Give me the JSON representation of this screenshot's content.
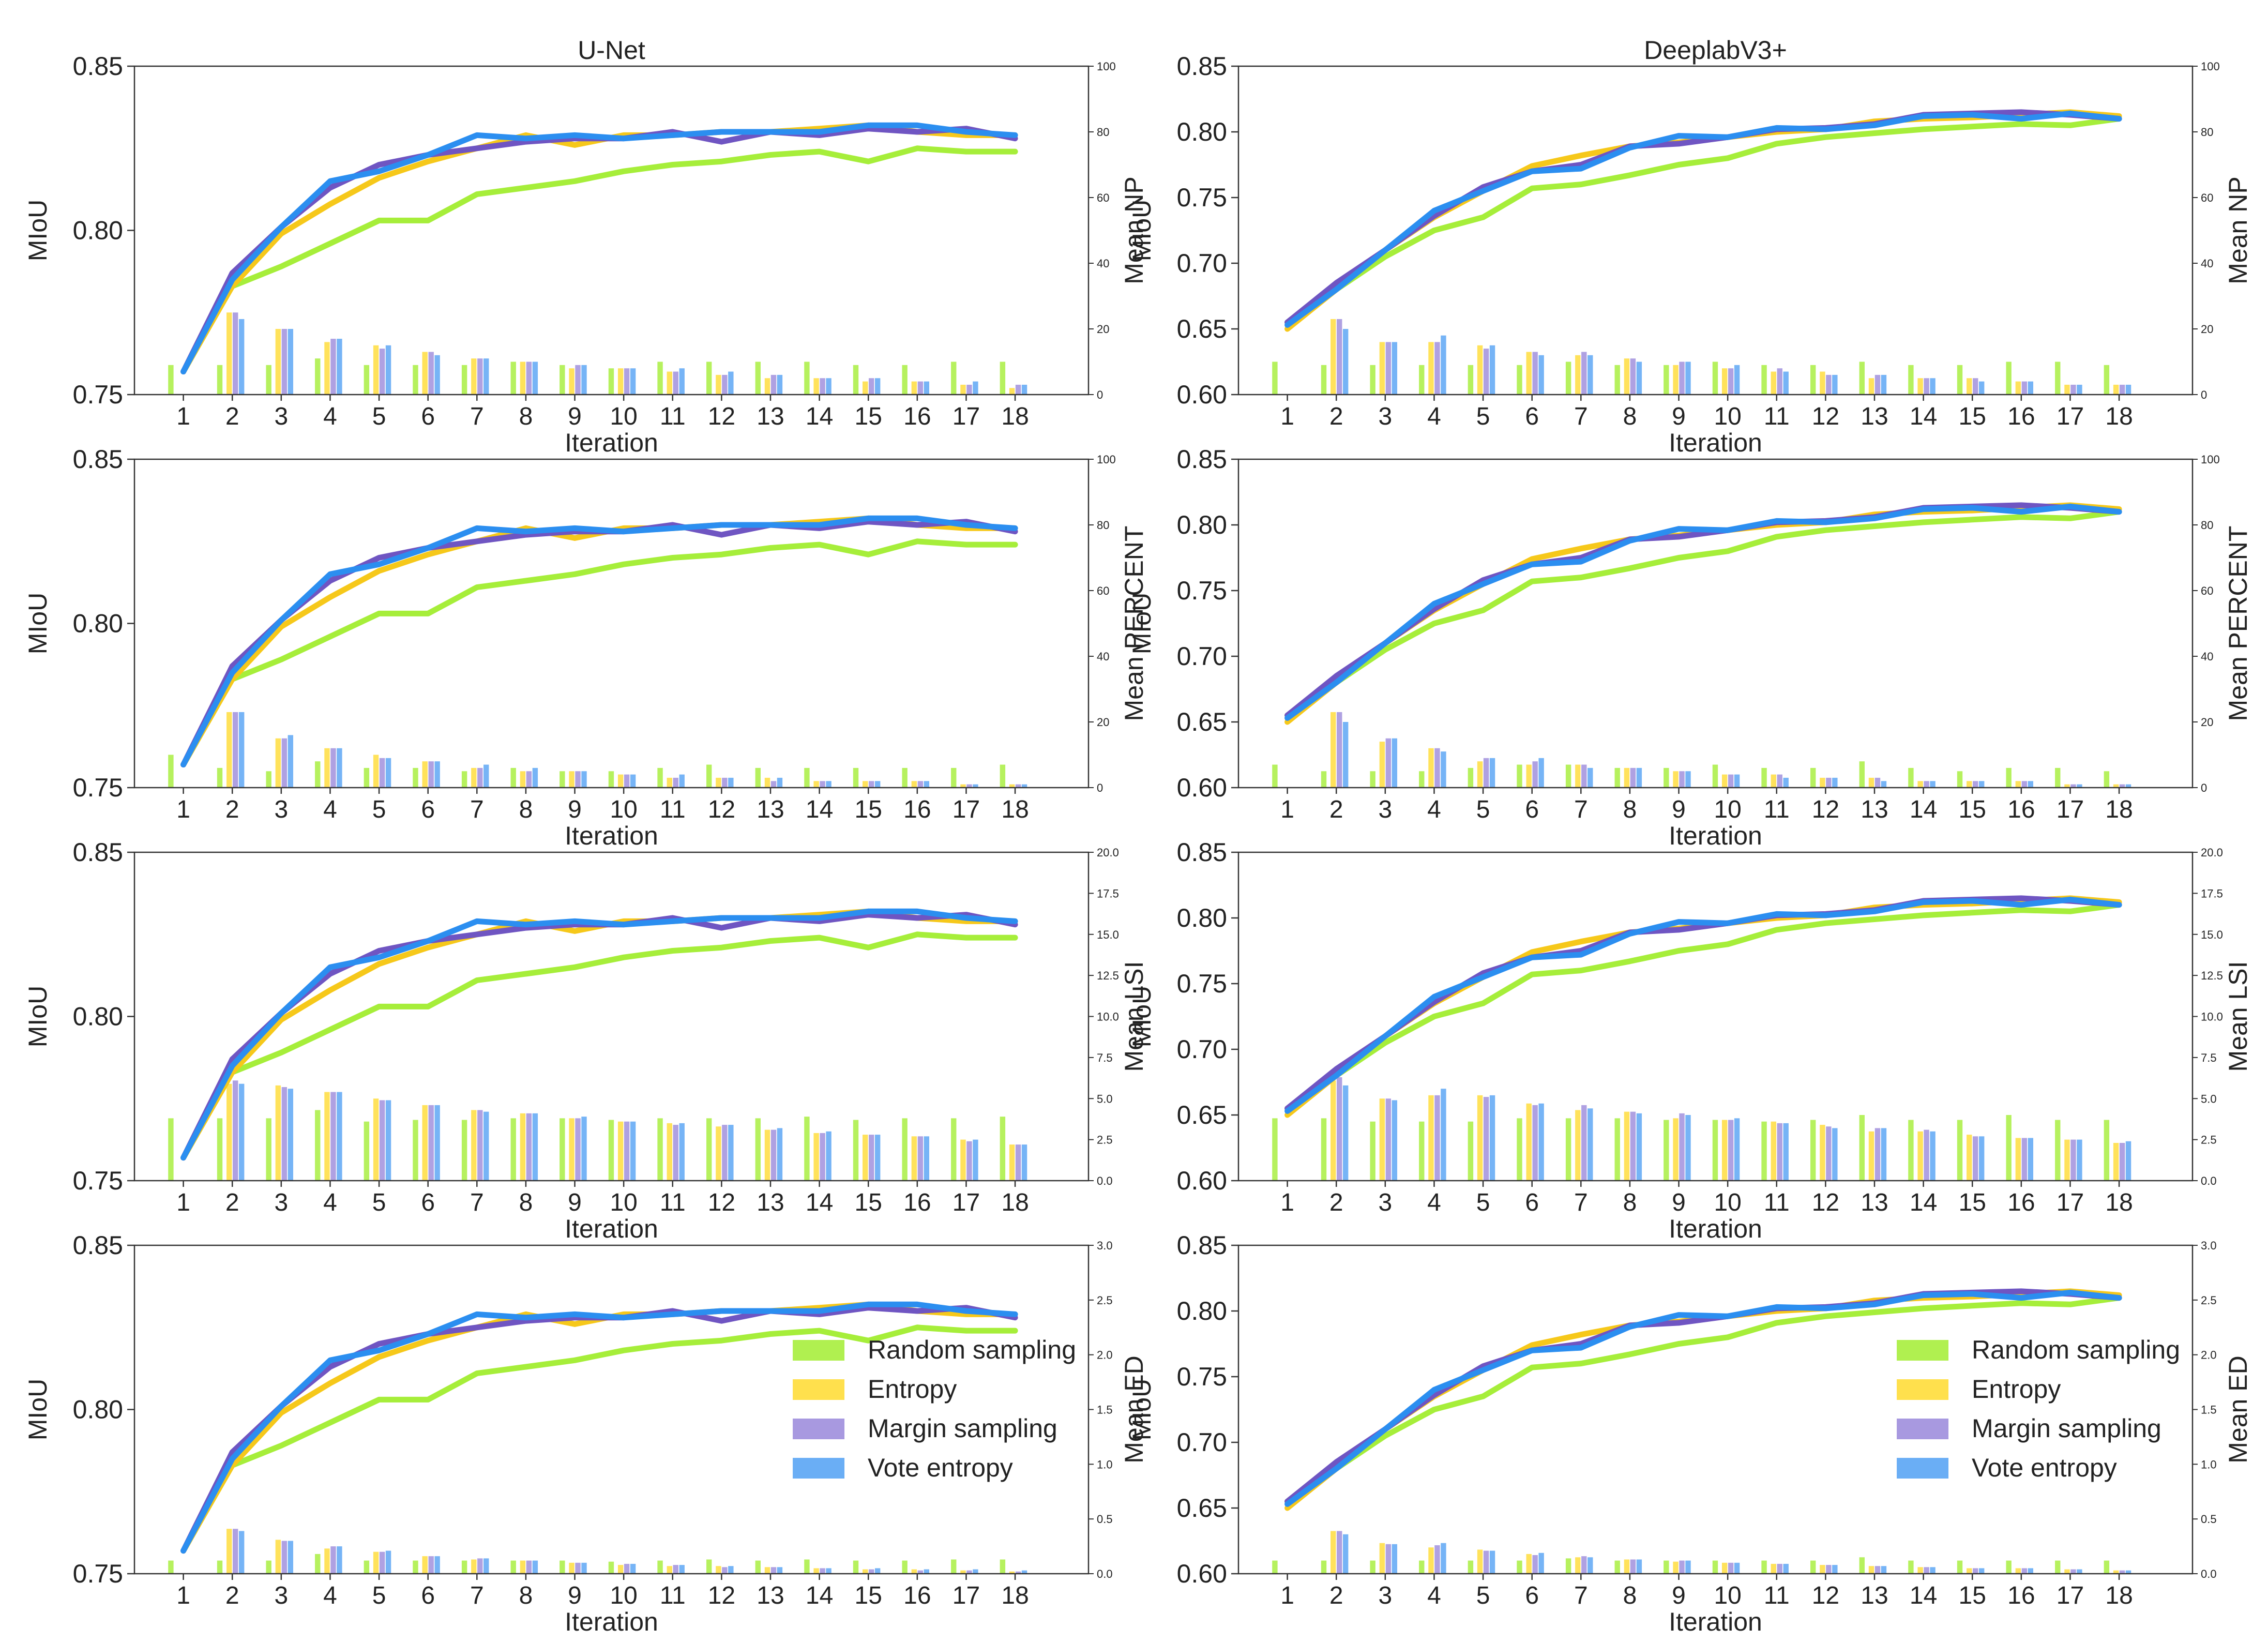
{
  "figure": {
    "columns": [
      {
        "title": "U-Net",
        "ylim": [
          0.75,
          0.85
        ],
        "yticks": [
          "0.75",
          "0.80",
          "0.85"
        ]
      },
      {
        "title": "DeeplabV3+",
        "ylim": [
          0.6,
          0.85
        ],
        "yticks": [
          "0.60",
          "0.65",
          "0.70",
          "0.75",
          "0.80",
          "0.85"
        ]
      }
    ],
    "rows": [
      {
        "right_label": "Mean NP",
        "right_ylim": [
          0,
          100
        ],
        "right_ticks": [
          "0",
          "20",
          "40",
          "60",
          "80",
          "100"
        ]
      },
      {
        "right_label": "Mean PERCENT",
        "right_ylim": [
          0,
          100
        ],
        "right_ticks": [
          "0",
          "20",
          "40",
          "60",
          "80",
          "100"
        ]
      },
      {
        "right_label": "Mean LSI",
        "right_ylim": [
          0,
          20
        ],
        "right_ticks": [
          "0.0",
          "2.5",
          "5.0",
          "7.5",
          "10.0",
          "12.5",
          "15.0",
          "17.5",
          "20.0"
        ]
      },
      {
        "right_label": "Mean ED",
        "right_ylim": [
          0,
          3
        ],
        "right_ticks": [
          "0.0",
          "0.5",
          "1.0",
          "1.5",
          "2.0",
          "2.5",
          "3.0"
        ]
      }
    ],
    "ylabel": "MIoU",
    "xlabel": "Iteration",
    "legend": [
      {
        "name": "Random sampling",
        "color": "#b0f050",
        "line": "#a6ee3a"
      },
      {
        "name": "Entropy",
        "color": "#ffe04d",
        "line": "#f6c81a"
      },
      {
        "name": "Margin sampling",
        "color": "#a899e0",
        "line": "#6f55c2"
      },
      {
        "name": "Vote entropy",
        "color": "#6aaef5",
        "line": "#2b8ef0"
      }
    ]
  },
  "chart_data": {
    "type": "bar+line",
    "categories": [
      "1",
      "2",
      "3",
      "4",
      "5",
      "6",
      "7",
      "8",
      "9",
      "10",
      "11",
      "12",
      "13",
      "14",
      "15",
      "16",
      "17",
      "18"
    ],
    "miou": {
      "U-Net": {
        "series": [
          {
            "name": "Random sampling",
            "values": [
              0.757,
              0.783,
              0.789,
              0.796,
              0.803,
              0.803,
              0.811,
              0.813,
              0.815,
              0.818,
              0.82,
              0.821,
              0.823,
              0.824,
              0.821,
              0.825,
              0.824,
              0.824
            ]
          },
          {
            "name": "Entropy",
            "values": [
              0.757,
              0.783,
              0.799,
              0.808,
              0.816,
              0.821,
              0.825,
              0.829,
              0.826,
              0.829,
              0.829,
              0.83,
              0.83,
              0.831,
              0.832,
              0.83,
              0.829,
              0.829
            ]
          },
          {
            "name": "Margin sampling",
            "values": [
              0.757,
              0.787,
              0.801,
              0.813,
              0.82,
              0.823,
              0.825,
              0.827,
              0.828,
              0.828,
              0.83,
              0.827,
              0.83,
              0.829,
              0.831,
              0.83,
              0.831,
              0.828
            ]
          },
          {
            "name": "Vote entropy",
            "values": [
              0.757,
              0.785,
              0.801,
              0.815,
              0.818,
              0.823,
              0.829,
              0.828,
              0.829,
              0.828,
              0.829,
              0.83,
              0.83,
              0.83,
              0.832,
              0.832,
              0.83,
              0.829
            ]
          }
        ]
      },
      "DeeplabV3+": {
        "series": [
          {
            "name": "Random sampling",
            "values": [
              0.655,
              0.68,
              0.705,
              0.725,
              0.735,
              0.757,
              0.76,
              0.767,
              0.775,
              0.78,
              0.791,
              0.796,
              0.799,
              0.802,
              0.804,
              0.806,
              0.805,
              0.81
            ]
          },
          {
            "name": "Entropy",
            "values": [
              0.65,
              0.68,
              0.71,
              0.735,
              0.755,
              0.774,
              0.782,
              0.789,
              0.792,
              0.796,
              0.8,
              0.802,
              0.808,
              0.81,
              0.811,
              0.813,
              0.815,
              0.812
            ]
          },
          {
            "name": "Margin sampling",
            "values": [
              0.655,
              0.685,
              0.71,
              0.736,
              0.758,
              0.77,
              0.775,
              0.789,
              0.791,
              0.796,
              0.802,
              0.803,
              0.806,
              0.813,
              0.814,
              0.815,
              0.813,
              0.81
            ]
          },
          {
            "name": "Vote entropy",
            "values": [
              0.653,
              0.68,
              0.71,
              0.74,
              0.755,
              0.77,
              0.772,
              0.788,
              0.797,
              0.796,
              0.803,
              0.802,
              0.805,
              0.812,
              0.813,
              0.81,
              0.814,
              0.81
            ]
          }
        ]
      }
    },
    "bars": {
      "U-Net": [
        {
          "metric": "Mean NP",
          "series": [
            [
              9,
              9,
              9,
              11,
              9,
              9,
              9,
              10,
              9,
              8,
              10,
              10,
              10,
              10,
              9,
              9,
              10,
              10
            ],
            [
              0,
              25,
              20,
              16,
              15,
              13,
              11,
              10,
              8,
              8,
              7,
              6,
              5,
              5,
              4,
              4,
              3,
              2
            ],
            [
              0,
              25,
              20,
              17,
              14,
              13,
              11,
              10,
              9,
              8,
              7,
              6,
              6,
              5,
              5,
              4,
              3,
              3
            ],
            [
              0,
              23,
              20,
              17,
              15,
              12,
              11,
              10,
              9,
              8,
              8,
              7,
              6,
              5,
              5,
              4,
              4,
              3
            ]
          ]
        },
        {
          "metric": "Mean PERCENT",
          "series": [
            [
              10,
              6,
              5,
              8,
              6,
              6,
              5,
              6,
              5,
              5,
              6,
              7,
              6,
              6,
              6,
              6,
              6,
              7
            ],
            [
              0,
              23,
              15,
              12,
              10,
              8,
              6,
              5,
              5,
              4,
              3,
              3,
              3,
              2,
              2,
              2,
              1,
              1
            ],
            [
              0,
              23,
              15,
              12,
              9,
              8,
              6,
              5,
              5,
              4,
              3,
              3,
              2,
              2,
              2,
              2,
              1,
              1
            ],
            [
              0,
              23,
              16,
              12,
              9,
              8,
              7,
              6,
              5,
              4,
              4,
              3,
              3,
              2,
              2,
              2,
              1,
              1
            ]
          ]
        },
        {
          "metric": "Mean LSI",
          "series": [
            [
              3.8,
              3.8,
              3.8,
              4.3,
              3.6,
              3.7,
              3.7,
              3.8,
              3.8,
              3.7,
              3.8,
              3.8,
              3.8,
              3.9,
              3.7,
              3.8,
              3.8,
              3.9
            ],
            [
              0,
              5.9,
              5.8,
              5.4,
              5.0,
              4.6,
              4.3,
              4.1,
              3.8,
              3.6,
              3.5,
              3.3,
              3.1,
              2.9,
              2.8,
              2.7,
              2.5,
              2.2
            ],
            [
              0,
              6.1,
              5.7,
              5.4,
              4.9,
              4.6,
              4.3,
              4.1,
              3.8,
              3.6,
              3.4,
              3.4,
              3.1,
              2.9,
              2.8,
              2.7,
              2.4,
              2.2
            ],
            [
              0,
              5.9,
              5.6,
              5.4,
              4.9,
              4.6,
              4.2,
              4.1,
              3.9,
              3.6,
              3.5,
              3.4,
              3.2,
              3.0,
              2.8,
              2.7,
              2.5,
              2.2
            ]
          ]
        },
        {
          "metric": "Mean ED",
          "series": [
            [
              0.12,
              0.12,
              0.12,
              0.18,
              0.12,
              0.12,
              0.12,
              0.12,
              0.12,
              0.11,
              0.12,
              0.13,
              0.12,
              0.13,
              0.12,
              0.12,
              0.13,
              0.13
            ],
            [
              0,
              0.41,
              0.31,
              0.23,
              0.2,
              0.16,
              0.13,
              0.12,
              0.1,
              0.08,
              0.07,
              0.07,
              0.06,
              0.05,
              0.04,
              0.04,
              0.03,
              0.02
            ],
            [
              0,
              0.41,
              0.3,
              0.25,
              0.2,
              0.16,
              0.14,
              0.12,
              0.1,
              0.09,
              0.08,
              0.06,
              0.06,
              0.05,
              0.04,
              0.03,
              0.03,
              0.02
            ],
            [
              0,
              0.39,
              0.3,
              0.25,
              0.21,
              0.16,
              0.14,
              0.12,
              0.1,
              0.09,
              0.08,
              0.07,
              0.06,
              0.05,
              0.05,
              0.04,
              0.04,
              0.03
            ]
          ]
        }
      ],
      "DeeplabV3+": [
        {
          "metric": "Mean NP",
          "series": [
            [
              10,
              9,
              9,
              9,
              9,
              9,
              10,
              9,
              9,
              10,
              9,
              9,
              10,
              9,
              9,
              10,
              10,
              9
            ],
            [
              0,
              23,
              16,
              16,
              15,
              13,
              12,
              11,
              9,
              8,
              7,
              7,
              5,
              5,
              5,
              4,
              3,
              3
            ],
            [
              0,
              23,
              16,
              16,
              14,
              13,
              13,
              11,
              10,
              8,
              8,
              6,
              6,
              5,
              5,
              4,
              3,
              3
            ],
            [
              0,
              20,
              16,
              18,
              15,
              12,
              12,
              10,
              10,
              9,
              7,
              6,
              6,
              5,
              4,
              4,
              3,
              3
            ]
          ]
        },
        {
          "metric": "Mean PERCENT",
          "series": [
            [
              7,
              5,
              5,
              5,
              6,
              7,
              7,
              6,
              6,
              7,
              6,
              6,
              8,
              6,
              5,
              6,
              6,
              5
            ],
            [
              0,
              23,
              14,
              12,
              8,
              7,
              7,
              6,
              5,
              4,
              4,
              3,
              3,
              2,
              2,
              2,
              1,
              1
            ],
            [
              0,
              23,
              15,
              12,
              9,
              8,
              7,
              6,
              5,
              4,
              4,
              3,
              3,
              2,
              2,
              2,
              1,
              1
            ],
            [
              0,
              20,
              15,
              11,
              9,
              9,
              6,
              6,
              5,
              4,
              3,
              3,
              2,
              2,
              2,
              2,
              1,
              1
            ]
          ]
        },
        {
          "metric": "Mean LSI",
          "series": [
            [
              3.8,
              3.8,
              3.6,
              3.6,
              3.6,
              3.8,
              3.8,
              3.8,
              3.7,
              3.7,
              3.6,
              3.7,
              4.0,
              3.7,
              3.7,
              4.0,
              3.7,
              3.7
            ],
            [
              0,
              6.1,
              5.0,
              5.2,
              5.2,
              4.7,
              4.3,
              4.2,
              3.8,
              3.7,
              3.6,
              3.4,
              3.0,
              3.0,
              2.8,
              2.6,
              2.5,
              2.3
            ],
            [
              0,
              6.3,
              5.0,
              5.2,
              5.1,
              4.6,
              4.6,
              4.2,
              4.1,
              3.7,
              3.5,
              3.3,
              3.2,
              3.1,
              2.7,
              2.6,
              2.5,
              2.3
            ],
            [
              0,
              5.8,
              4.9,
              5.6,
              5.2,
              4.7,
              4.4,
              4.1,
              4.0,
              3.8,
              3.5,
              3.2,
              3.2,
              3.0,
              2.7,
              2.6,
              2.5,
              2.4
            ]
          ]
        },
        {
          "metric": "Mean ED",
          "series": [
            [
              0.12,
              0.12,
              0.12,
              0.12,
              0.12,
              0.12,
              0.14,
              0.12,
              0.12,
              0.12,
              0.12,
              0.12,
              0.15,
              0.12,
              0.12,
              0.12,
              0.12,
              0.12
            ],
            [
              0,
              0.39,
              0.28,
              0.24,
              0.22,
              0.18,
              0.15,
              0.13,
              0.11,
              0.1,
              0.09,
              0.08,
              0.07,
              0.06,
              0.05,
              0.05,
              0.04,
              0.03
            ],
            [
              0,
              0.39,
              0.27,
              0.26,
              0.21,
              0.17,
              0.16,
              0.13,
              0.12,
              0.1,
              0.09,
              0.08,
              0.07,
              0.06,
              0.05,
              0.05,
              0.04,
              0.03
            ],
            [
              0,
              0.36,
              0.27,
              0.28,
              0.21,
              0.19,
              0.15,
              0.13,
              0.12,
              0.1,
              0.09,
              0.08,
              0.07,
              0.06,
              0.05,
              0.05,
              0.04,
              0.03
            ]
          ]
        }
      ]
    }
  }
}
